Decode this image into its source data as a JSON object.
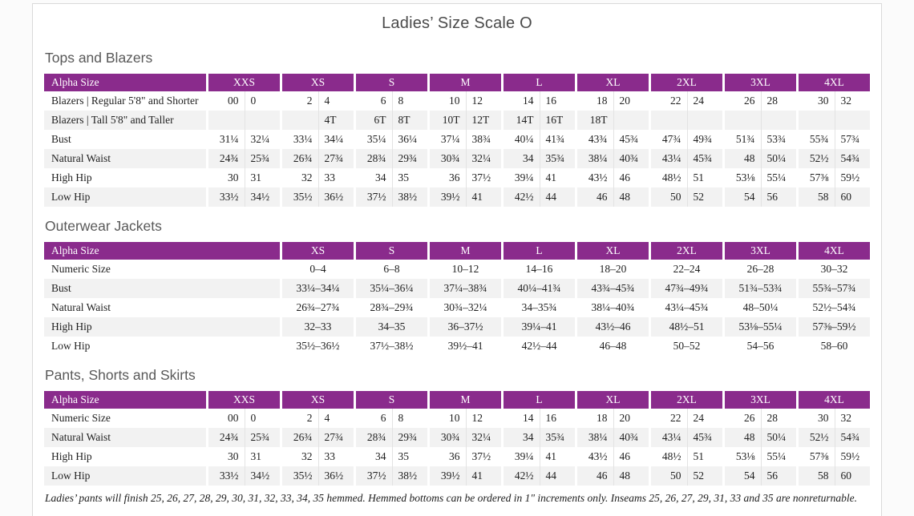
{
  "document": {
    "title": "Ladies’ Size Scale O",
    "footnote": "Ladies’ pants will finish 25, 26, 27, 28, 29, 30, 31, 32, 33, 34, 35 hemmed. Hemmed bottoms can be ordered in 1\" increments only. Inseams 25, 26, 27, 29, 31, 33 and 35 are nonreturnable."
  },
  "colors": {
    "accent_purple": "#8a2b8c",
    "stripe_gray": "#f2f2f2",
    "header_text": "#ffffff"
  },
  "tables": [
    {
      "section": "Tops and Blazers",
      "type": "paired",
      "header": [
        "Alpha Size",
        "XXS",
        "XS",
        "S",
        "M",
        "L",
        "XL",
        "2XL",
        "3XL",
        "4XL"
      ],
      "rows": [
        {
          "label": "Blazers  |  Regular 5'8\" and Shorter",
          "values": [
            [
              "00",
              "0"
            ],
            [
              "2",
              "4"
            ],
            [
              "6",
              "8"
            ],
            [
              "10",
              "12"
            ],
            [
              "14",
              "16"
            ],
            [
              "18",
              "20"
            ],
            [
              "22",
              "24"
            ],
            [
              "26",
              "28"
            ],
            [
              "30",
              "32"
            ]
          ]
        },
        {
          "label": "Blazers  |  Tall 5'8\" and Taller",
          "values": [
            [
              "",
              ""
            ],
            [
              "",
              "4T"
            ],
            [
              "6T",
              "8T"
            ],
            [
              "10T",
              "12T"
            ],
            [
              "14T",
              "16T"
            ],
            [
              "18T",
              ""
            ],
            [
              "",
              ""
            ],
            [
              "",
              ""
            ],
            [
              "",
              ""
            ]
          ]
        },
        {
          "label": "Bust",
          "values": [
            [
              "31¼",
              "32¼"
            ],
            [
              "33¼",
              "34¼"
            ],
            [
              "35¼",
              "36¼"
            ],
            [
              "37¼",
              "38¾"
            ],
            [
              "40¼",
              "41¾"
            ],
            [
              "43¾",
              "45¾"
            ],
            [
              "47¾",
              "49¾"
            ],
            [
              "51¾",
              "53¾"
            ],
            [
              "55¾",
              "57¾"
            ]
          ]
        },
        {
          "label": "Natural Waist",
          "values": [
            [
              "24¾",
              "25¾"
            ],
            [
              "26¾",
              "27¾"
            ],
            [
              "28¾",
              "29¾"
            ],
            [
              "30¾",
              "32¼"
            ],
            [
              "34",
              "35¾"
            ],
            [
              "38¼",
              "40¾"
            ],
            [
              "43¼",
              "45¾"
            ],
            [
              "48",
              "50¼"
            ],
            [
              "52½",
              "54¾"
            ]
          ]
        },
        {
          "label": "High Hip",
          "values": [
            [
              "30",
              "31"
            ],
            [
              "32",
              "33"
            ],
            [
              "34",
              "35"
            ],
            [
              "36",
              "37½"
            ],
            [
              "39¼",
              "41"
            ],
            [
              "43½",
              "46"
            ],
            [
              "48½",
              "51"
            ],
            [
              "53⅛",
              "55¼"
            ],
            [
              "57⅜",
              "59½"
            ]
          ]
        },
        {
          "label": "Low Hip",
          "values": [
            [
              "33½",
              "34½"
            ],
            [
              "35½",
              "36½"
            ],
            [
              "37½",
              "38½"
            ],
            [
              "39½",
              "41"
            ],
            [
              "42½",
              "44"
            ],
            [
              "46",
              "48"
            ],
            [
              "50",
              "52"
            ],
            [
              "54",
              "56"
            ],
            [
              "58",
              "60"
            ]
          ]
        }
      ]
    },
    {
      "section": "Outerwear Jackets",
      "type": "single",
      "header": [
        "Alpha Size",
        "XS",
        "S",
        "M",
        "L",
        "XL",
        "2XL",
        "3XL",
        "4XL"
      ],
      "rows": [
        {
          "label": "Numeric Size",
          "values": [
            "0–4",
            "6–8",
            "10–12",
            "14–16",
            "18–20",
            "22–24",
            "26–28",
            "30–32"
          ]
        },
        {
          "label": "Bust",
          "values": [
            "33¼–34¼",
            "35¼–36¼",
            "37¼–38¾",
            "40¼–41¾",
            "43¾–45¾",
            "47¾–49¾",
            "51¾–53¾",
            "55¾–57¾"
          ]
        },
        {
          "label": "Natural Waist",
          "values": [
            "26¾–27¾",
            "28¾–29¾",
            "30¾–32¼",
            "34–35¾",
            "38¼–40¾",
            "43¼–45¾",
            "48–50¼",
            "52½–54¾"
          ]
        },
        {
          "label": "High Hip",
          "values": [
            "32–33",
            "34–35",
            "36–37½",
            "39¼–41",
            "43½–46",
            "48½–51",
            "53⅛–55¼",
            "57⅜–59½"
          ]
        },
        {
          "label": "Low Hip",
          "values": [
            "35½–36½",
            "37½–38½",
            "39½–41",
            "42½–44",
            "46–48",
            "50–52",
            "54–56",
            "58–60"
          ]
        }
      ]
    },
    {
      "section": "Pants, Shorts and Skirts",
      "type": "paired",
      "header": [
        "Alpha Size",
        "XXS",
        "XS",
        "S",
        "M",
        "L",
        "XL",
        "2XL",
        "3XL",
        "4XL"
      ],
      "rows": [
        {
          "label": "Numeric Size",
          "values": [
            [
              "00",
              "0"
            ],
            [
              "2",
              "4"
            ],
            [
              "6",
              "8"
            ],
            [
              "10",
              "12"
            ],
            [
              "14",
              "16"
            ],
            [
              "18",
              "20"
            ],
            [
              "22",
              "24"
            ],
            [
              "26",
              "28"
            ],
            [
              "30",
              "32"
            ]
          ]
        },
        {
          "label": "Natural Waist",
          "values": [
            [
              "24¾",
              "25¾"
            ],
            [
              "26¾",
              "27¾"
            ],
            [
              "28¾",
              "29¾"
            ],
            [
              "30¾",
              "32¼"
            ],
            [
              "34",
              "35¾"
            ],
            [
              "38¼",
              "40¾"
            ],
            [
              "43¼",
              "45¾"
            ],
            [
              "48",
              "50¼"
            ],
            [
              "52½",
              "54¾"
            ]
          ]
        },
        {
          "label": "High Hip",
          "values": [
            [
              "30",
              "31"
            ],
            [
              "32",
              "33"
            ],
            [
              "34",
              "35"
            ],
            [
              "36",
              "37½"
            ],
            [
              "39¼",
              "41"
            ],
            [
              "43½",
              "46"
            ],
            [
              "48½",
              "51"
            ],
            [
              "53⅛",
              "55¼"
            ],
            [
              "57⅜",
              "59½"
            ]
          ]
        },
        {
          "label": "Low Hip",
          "values": [
            [
              "33½",
              "34½"
            ],
            [
              "35½",
              "36½"
            ],
            [
              "37½",
              "38½"
            ],
            [
              "39½",
              "41"
            ],
            [
              "42½",
              "44"
            ],
            [
              "46",
              "48"
            ],
            [
              "50",
              "52"
            ],
            [
              "54",
              "56"
            ],
            [
              "58",
              "60"
            ]
          ]
        }
      ]
    }
  ]
}
